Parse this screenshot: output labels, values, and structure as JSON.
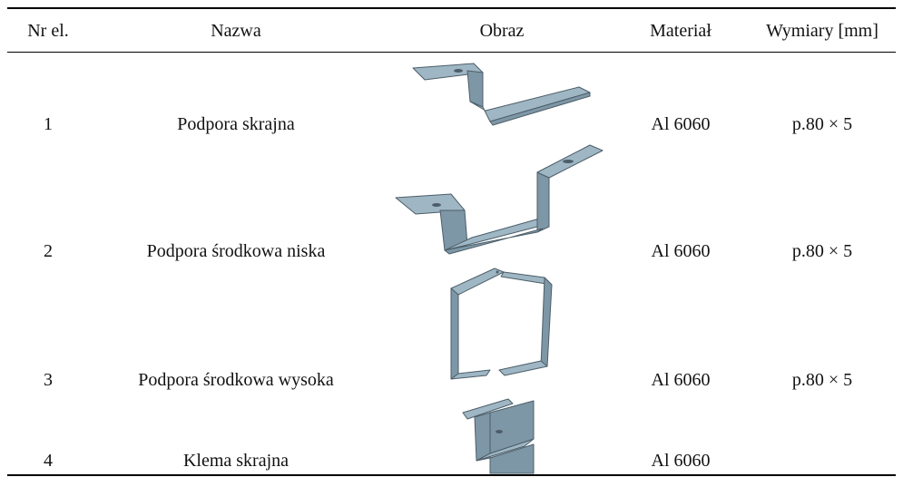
{
  "table": {
    "header": [
      "Nr el.",
      "Nazwa",
      "Obraz",
      "Materiał",
      "Wymiary [mm]"
    ],
    "rows": [
      {
        "nr": "1",
        "name": "Podpora skrajna",
        "material": "Al 6060",
        "dims": "p.80 × 5"
      },
      {
        "nr": "2",
        "name": "Podpora środkowa niska",
        "material": "Al 6060",
        "dims": "p.80 × 5"
      },
      {
        "nr": "3",
        "name": "Podpora środkowa wysoka",
        "material": "Al 6060",
        "dims": "p.80 × 5"
      },
      {
        "nr": "4",
        "name": "Klema skrajna",
        "material": "Al 6060"
      }
    ]
  }
}
